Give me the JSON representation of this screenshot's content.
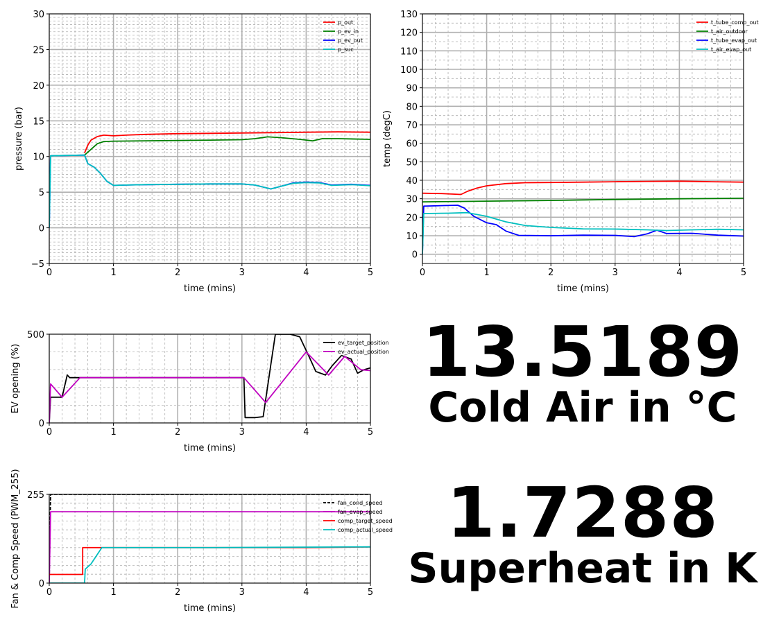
{
  "readouts": {
    "cold_air_value": "13.5189",
    "cold_air_label": "Cold Air in °C",
    "superheat_value": "1.7288",
    "superheat_label": "Superheat in K"
  },
  "chart_data": [
    {
      "type": "line",
      "xlabel": "time (mins)",
      "ylabel": "pressure (bar)",
      "xlim": [
        0,
        5
      ],
      "ylim": [
        -5,
        30
      ],
      "xticks": [
        0,
        1,
        2,
        3,
        4,
        5
      ],
      "yticks": [
        -5,
        0,
        5,
        10,
        15,
        20,
        25,
        30
      ],
      "ytick_labels": [
        "−5",
        "0",
        "5",
        "10",
        "15",
        "20",
        "25",
        "30"
      ],
      "minor_grid": 0.5,
      "grid": true,
      "legend_position": "top-right",
      "series": [
        {
          "name": "p_out",
          "color": "#ff0000",
          "points": [
            [
              0.55,
              10.5
            ],
            [
              0.6,
              11.6
            ],
            [
              0.65,
              12.3
            ],
            [
              0.75,
              12.8
            ],
            [
              0.85,
              13.0
            ],
            [
              1.0,
              12.9
            ],
            [
              1.2,
              13.0
            ],
            [
              1.5,
              13.1
            ],
            [
              2.0,
              13.2
            ],
            [
              2.5,
              13.25
            ],
            [
              3.0,
              13.3
            ],
            [
              3.5,
              13.35
            ],
            [
              4.0,
              13.4
            ],
            [
              4.5,
              13.45
            ],
            [
              5.0,
              13.4
            ]
          ]
        },
        {
          "name": "p_ev_in",
          "color": "#008000",
          "points": [
            [
              0.55,
              10.2
            ],
            [
              0.65,
              11.0
            ],
            [
              0.75,
              11.8
            ],
            [
              0.85,
              12.1
            ],
            [
              1.0,
              12.15
            ],
            [
              1.5,
              12.2
            ],
            [
              2.0,
              12.25
            ],
            [
              2.5,
              12.3
            ],
            [
              3.0,
              12.35
            ],
            [
              3.2,
              12.5
            ],
            [
              3.4,
              12.75
            ],
            [
              3.6,
              12.65
            ],
            [
              3.9,
              12.4
            ],
            [
              4.1,
              12.2
            ],
            [
              4.25,
              12.5
            ],
            [
              4.5,
              12.5
            ],
            [
              5.0,
              12.4
            ]
          ]
        },
        {
          "name": "p_ev_out",
          "color": "#0000ff",
          "points": [
            [
              0.0,
              0.0
            ],
            [
              0.02,
              10.1
            ],
            [
              0.55,
              10.2
            ],
            [
              0.6,
              9.0
            ],
            [
              0.7,
              8.5
            ],
            [
              0.8,
              7.6
            ],
            [
              0.9,
              6.5
            ],
            [
              1.0,
              5.95
            ],
            [
              1.2,
              6.0
            ],
            [
              1.5,
              6.05
            ],
            [
              2.0,
              6.1
            ],
            [
              2.5,
              6.15
            ],
            [
              3.0,
              6.15
            ],
            [
              3.2,
              6.0
            ],
            [
              3.45,
              5.45
            ],
            [
              3.6,
              5.8
            ],
            [
              3.8,
              6.3
            ],
            [
              4.0,
              6.4
            ],
            [
              4.2,
              6.35
            ],
            [
              4.4,
              6.0
            ],
            [
              4.7,
              6.1
            ],
            [
              5.0,
              5.95
            ]
          ]
        },
        {
          "name": "p_suc",
          "color": "#00bfbf",
          "points": [
            [
              0.0,
              0.0
            ],
            [
              0.02,
              10.1
            ],
            [
              0.55,
              10.2
            ],
            [
              0.6,
              9.0
            ],
            [
              0.7,
              8.5
            ],
            [
              0.8,
              7.6
            ],
            [
              0.9,
              6.5
            ],
            [
              1.0,
              5.95
            ],
            [
              1.2,
              6.0
            ],
            [
              1.5,
              6.05
            ],
            [
              2.0,
              6.1
            ],
            [
              2.5,
              6.15
            ],
            [
              3.0,
              6.15
            ],
            [
              3.2,
              6.0
            ],
            [
              3.45,
              5.45
            ],
            [
              3.6,
              5.8
            ],
            [
              3.8,
              6.25
            ],
            [
              4.0,
              6.35
            ],
            [
              4.2,
              6.3
            ],
            [
              4.4,
              5.95
            ],
            [
              4.7,
              6.05
            ],
            [
              5.0,
              5.9
            ]
          ]
        }
      ]
    },
    {
      "type": "line",
      "xlabel": "time (mins)",
      "ylabel": "temp (degC)",
      "xlim": [
        0,
        5
      ],
      "ylim": [
        -5,
        130
      ],
      "xticks": [
        0,
        1,
        2,
        3,
        4,
        5
      ],
      "yticks": [
        0,
        10,
        20,
        30,
        40,
        50,
        60,
        70,
        80,
        90,
        100,
        110,
        120,
        130
      ],
      "ytick_labels": [
        "0",
        "10",
        "20",
        "30",
        "40",
        "50",
        "60",
        "70",
        "80",
        "90",
        "100",
        "110",
        "120",
        "130"
      ],
      "minor_grid": 5,
      "grid": true,
      "legend_position": "top-right",
      "series": [
        {
          "name": "t_tube_comp_out",
          "color": "#ff0000",
          "points": [
            [
              0.0,
              33.0
            ],
            [
              0.3,
              32.8
            ],
            [
              0.6,
              32.3
            ],
            [
              0.7,
              34.0
            ],
            [
              0.85,
              35.8
            ],
            [
              1.0,
              37.0
            ],
            [
              1.3,
              38.2
            ],
            [
              1.6,
              38.7
            ],
            [
              2.0,
              38.8
            ],
            [
              2.5,
              39.0
            ],
            [
              3.0,
              39.2
            ],
            [
              3.5,
              39.4
            ],
            [
              4.0,
              39.5
            ],
            [
              4.5,
              39.2
            ],
            [
              5.0,
              39.0
            ]
          ]
        },
        {
          "name": "t_air_outdoor",
          "color": "#008000",
          "points": [
            [
              0.0,
              28.3
            ],
            [
              1.0,
              28.7
            ],
            [
              2.0,
              29.1
            ],
            [
              3.0,
              29.6
            ],
            [
              4.0,
              30.0
            ],
            [
              5.0,
              30.3
            ]
          ]
        },
        {
          "name": "t_tube_evap_out",
          "color": "#0000ff",
          "points": [
            [
              0.0,
              0.0
            ],
            [
              0.02,
              26.0
            ],
            [
              0.55,
              26.5
            ],
            [
              0.65,
              25.0
            ],
            [
              0.8,
              20.5
            ],
            [
              1.0,
              17.0
            ],
            [
              1.15,
              16.0
            ],
            [
              1.3,
              12.5
            ],
            [
              1.5,
              10.2
            ],
            [
              2.0,
              10.0
            ],
            [
              2.5,
              10.3
            ],
            [
              3.0,
              10.2
            ],
            [
              3.3,
              9.5
            ],
            [
              3.5,
              11.0
            ],
            [
              3.65,
              13.0
            ],
            [
              3.8,
              11.2
            ],
            [
              4.2,
              11.3
            ],
            [
              4.6,
              10.3
            ],
            [
              5.0,
              9.8
            ]
          ]
        },
        {
          "name": "t_air_evap_out",
          "color": "#00bfbf",
          "points": [
            [
              0.0,
              0.0
            ],
            [
              0.02,
              22.0
            ],
            [
              0.4,
              22.2
            ],
            [
              0.7,
              22.5
            ],
            [
              1.0,
              20.5
            ],
            [
              1.3,
              17.5
            ],
            [
              1.6,
              15.5
            ],
            [
              2.0,
              14.5
            ],
            [
              2.5,
              13.7
            ],
            [
              3.0,
              13.6
            ],
            [
              3.5,
              13.2
            ],
            [
              3.8,
              12.8
            ],
            [
              4.2,
              13.2
            ],
            [
              4.6,
              13.5
            ],
            [
              5.0,
              13.2
            ]
          ]
        }
      ]
    },
    {
      "type": "line",
      "xlabel": "time (mins)",
      "ylabel": "EV opening (%)",
      "xlim": [
        0,
        5
      ],
      "ylim": [
        0,
        500
      ],
      "xticks": [
        0,
        1,
        2,
        3,
        4,
        5
      ],
      "yticks": [
        0,
        500
      ],
      "ytick_labels": [
        "0",
        "500"
      ],
      "minor_grid": 100,
      "grid": true,
      "legend_position": "top-right",
      "series": [
        {
          "name": "ev_target_position",
          "color": "#000000",
          "points": [
            [
              0.0,
              0.0
            ],
            [
              0.02,
              145.0
            ],
            [
              0.2,
              145.0
            ],
            [
              0.28,
              270.0
            ],
            [
              0.32,
              255.0
            ],
            [
              3.03,
              255.0
            ],
            [
              3.05,
              30.0
            ],
            [
              3.2,
              30.0
            ],
            [
              3.33,
              35.0
            ],
            [
              3.45,
              330.0
            ],
            [
              3.52,
              500.0
            ],
            [
              3.75,
              500.0
            ],
            [
              3.9,
              485.0
            ],
            [
              4.05,
              370.0
            ],
            [
              4.15,
              290.0
            ],
            [
              4.3,
              270.0
            ],
            [
              4.4,
              320.0
            ],
            [
              4.55,
              380.0
            ],
            [
              4.7,
              360.0
            ],
            [
              4.8,
              280.0
            ],
            [
              4.9,
              300.0
            ],
            [
              5.0,
              310.0
            ]
          ]
        },
        {
          "name": "ev_actual_position",
          "color": "#bf00bf",
          "points": [
            [
              0.0,
              0.0
            ],
            [
              0.02,
              220.0
            ],
            [
              0.2,
              145.0
            ],
            [
              0.48,
              255.0
            ],
            [
              3.03,
              255.0
            ],
            [
              3.37,
              115.0
            ],
            [
              4.0,
              400.0
            ],
            [
              4.35,
              270.0
            ],
            [
              4.6,
              375.0
            ],
            [
              4.85,
              300.0
            ],
            [
              5.0,
              295.0
            ]
          ]
        }
      ]
    },
    {
      "type": "line",
      "xlabel": "time (mins)",
      "ylabel": "Fan & Comp Speed (PWM_255)",
      "xlim": [
        0,
        5
      ],
      "ylim": [
        0,
        255
      ],
      "xticks": [
        0,
        1,
        2,
        3,
        4,
        5
      ],
      "yticks": [
        0,
        255
      ],
      "ytick_labels": [
        "0",
        "255"
      ],
      "minor_grid": 25.5,
      "grid": true,
      "legend_position": "top-right",
      "series": [
        {
          "name": "fan_cond_speed",
          "color": "#000000",
          "dash": true,
          "points": [
            [
              0.0,
              0.0
            ],
            [
              0.02,
              255.0
            ],
            [
              5.0,
              255.0
            ]
          ]
        },
        {
          "name": "fan_evap_speed",
          "color": "#bf00bf",
          "points": [
            [
              0.0,
              0.0
            ],
            [
              0.02,
              205.0
            ],
            [
              5.0,
              205.0
            ]
          ]
        },
        {
          "name": "comp_target_speed",
          "color": "#ff0000",
          "points": [
            [
              0.0,
              25.0
            ],
            [
              0.52,
              25.0
            ],
            [
              0.52,
              102.0
            ],
            [
              4.0,
              102.0
            ],
            [
              5.0,
              104.0
            ]
          ]
        },
        {
          "name": "comp_actual_speed",
          "color": "#00bfbf",
          "points": [
            [
              0.0,
              0.0
            ],
            [
              0.55,
              0.0
            ],
            [
              0.56,
              40.0
            ],
            [
              0.65,
              55.0
            ],
            [
              0.82,
              102.0
            ],
            [
              2.5,
              102.0
            ],
            [
              5.0,
              104.0
            ]
          ]
        }
      ]
    }
  ]
}
